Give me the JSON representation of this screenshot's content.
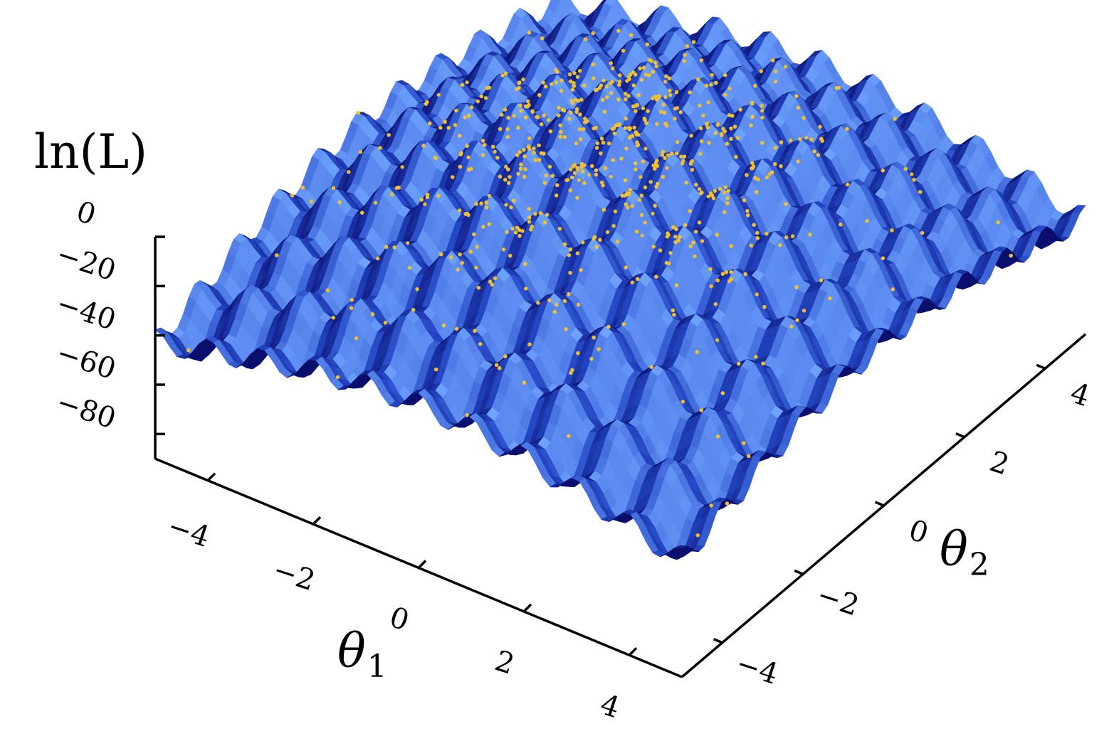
{
  "chart_data": {
    "type": "surface",
    "title": "",
    "zlabel": "ln(L)",
    "xlabel_symbol": "θ",
    "xlabel_sub": "1",
    "ylabel_symbol": "θ",
    "ylabel_sub": "2",
    "xlim": [
      -5,
      5
    ],
    "ylim": [
      -5,
      5
    ],
    "zlim": [
      -90,
      0
    ],
    "x_ticks": [
      -4,
      -2,
      0,
      2,
      4
    ],
    "x_tick_labels": [
      "−4",
      "−2",
      "0",
      "2",
      "4"
    ],
    "y_ticks": [
      -4,
      -2,
      0,
      2,
      4
    ],
    "y_tick_labels": [
      "−4",
      "−2",
      "0",
      "2",
      "4"
    ],
    "z_ticks": [
      0,
      -20,
      -40,
      -60,
      -80
    ],
    "z_tick_labels": [
      "0",
      "−20",
      "−40",
      "−60",
      "−80"
    ],
    "surface_colors": {
      "dark": "#0a0f6e",
      "mid": "#2447c4",
      "light": "#6fa3ff"
    },
    "sample_color": "#f0c030",
    "series": [
      {
        "kind": "surface",
        "oscillation_period": 1.0,
        "envelope_peak": [
          0,
          0
        ]
      },
      {
        "kind": "scatter",
        "concentration": "near the global maximum"
      }
    ]
  }
}
